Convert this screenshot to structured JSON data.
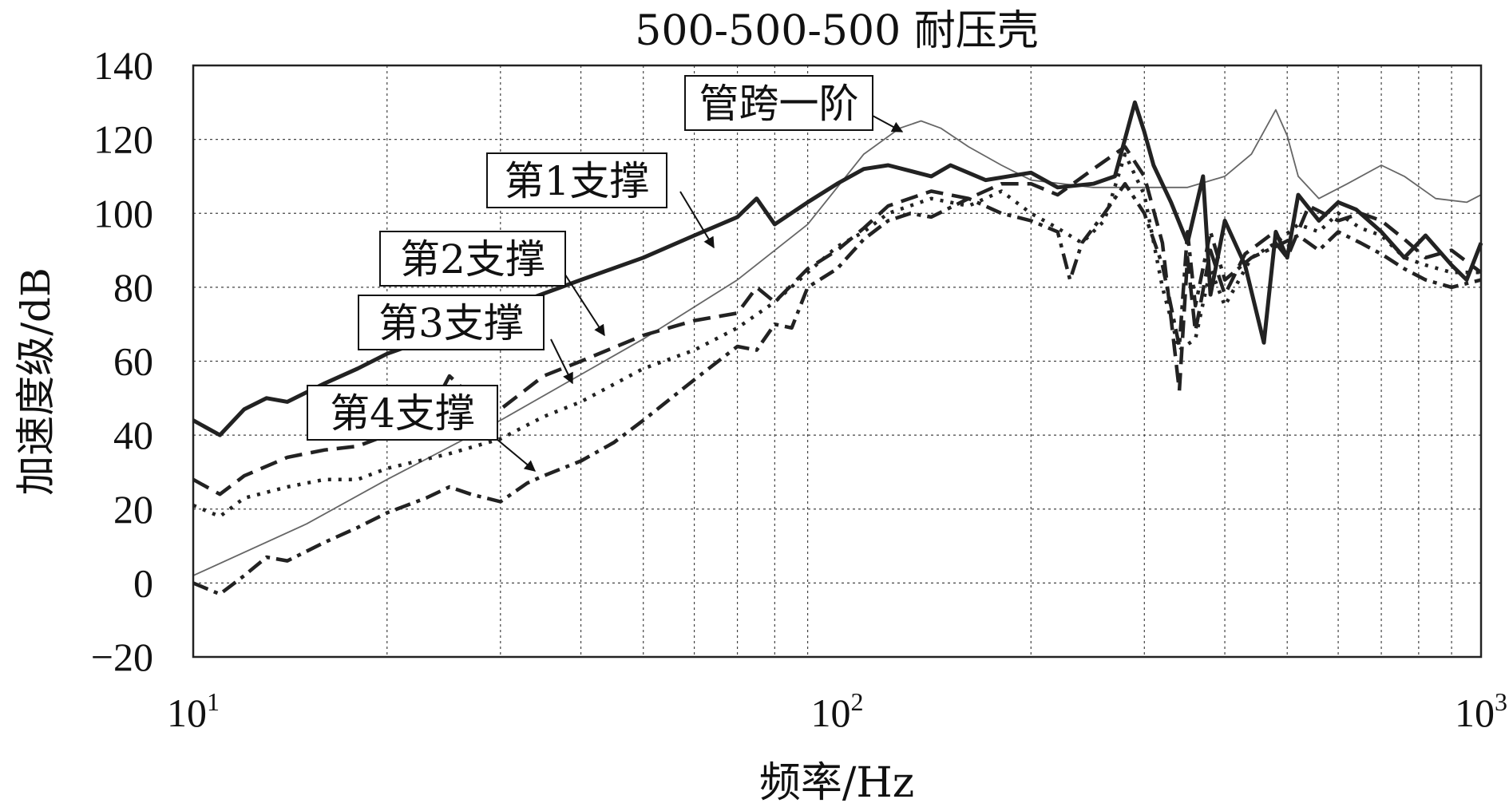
{
  "chart_data": {
    "type": "line",
    "title": "500-500-500 耐压壳",
    "xlabel": "频率/Hz",
    "ylabel": "加速度级/dB",
    "x_scale": "log",
    "xlim": [
      10,
      1000
    ],
    "ylim": [
      -20,
      140
    ],
    "grid": true,
    "y_ticks": [
      "−20",
      "0",
      "20",
      "40",
      "60",
      "80",
      "100",
      "120",
      "140"
    ],
    "x_ticks": [
      {
        "base": "10",
        "exp": "1"
      },
      {
        "base": "10",
        "exp": "2"
      },
      {
        "base": "10",
        "exp": "3"
      }
    ],
    "annotations": [
      "管跨一阶",
      "第1支撑",
      "第2支撑",
      "第3支撑",
      "第4支撑"
    ],
    "series": [
      {
        "name": "管跨一阶",
        "style": "thin",
        "color": "#666666",
        "x": [
          10,
          15,
          20,
          30,
          50,
          70,
          90,
          110,
          125,
          135,
          145,
          160,
          180,
          200,
          250,
          300,
          350,
          400,
          440,
          480,
          500,
          520,
          560,
          620,
          700,
          760,
          850,
          950,
          1000
        ],
        "y": [
          2,
          16,
          28,
          44,
          66,
          82,
          97,
          116,
          123,
          125,
          123,
          118,
          113,
          109,
          107,
          107,
          107,
          110,
          116,
          128,
          121,
          110,
          104,
          108,
          113,
          110,
          104,
          103,
          105
        ]
      },
      {
        "name": "第1支撑",
        "style": "thick",
        "color": "#222222",
        "x": [
          10,
          11,
          12,
          13,
          14,
          16,
          18,
          20,
          25,
          30,
          40,
          50,
          60,
          70,
          75,
          80,
          90,
          100,
          110,
          120,
          140,
          150,
          170,
          200,
          220,
          250,
          270,
          290,
          300,
          310,
          330,
          350,
          370,
          380,
          400,
          430,
          460,
          480,
          500,
          520,
          560,
          600,
          640,
          700,
          760,
          820,
          900,
          950,
          1000
        ],
        "y": [
          44,
          40,
          47,
          50,
          49,
          54,
          58,
          62,
          68,
          74,
          82,
          88,
          94,
          99,
          104,
          97,
          103,
          108,
          112,
          113,
          110,
          113,
          109,
          111,
          107,
          108,
          110,
          130,
          122,
          113,
          103,
          92,
          110,
          78,
          98,
          86,
          65,
          95,
          88,
          105,
          98,
          103,
          101,
          95,
          88,
          94,
          86,
          82,
          92
        ]
      },
      {
        "name": "第2支撑",
        "style": "dashed",
        "color": "#222222",
        "x": [
          10,
          11,
          12,
          14,
          16,
          18,
          20,
          23,
          25,
          28,
          30,
          35,
          40,
          50,
          60,
          70,
          75,
          80,
          90,
          100,
          110,
          120,
          140,
          160,
          180,
          200,
          220,
          250,
          280,
          300,
          320,
          340,
          350,
          360,
          380,
          400,
          430,
          470,
          500,
          540,
          600,
          650,
          700,
          760,
          820,
          900,
          1000
        ],
        "y": [
          28,
          24,
          29,
          34,
          36,
          37,
          40,
          44,
          56,
          48,
          47,
          56,
          60,
          67,
          71,
          73,
          80,
          76,
          85,
          90,
          96,
          102,
          106,
          104,
          108,
          108,
          105,
          112,
          118,
          110,
          92,
          52,
          88,
          68,
          90,
          78,
          89,
          94,
          88,
          102,
          98,
          100,
          98,
          93,
          88,
          90,
          84
        ]
      },
      {
        "name": "第3支撑",
        "style": "dotted",
        "color": "#222222",
        "x": [
          10,
          11,
          12,
          14,
          16,
          18,
          20,
          25,
          30,
          35,
          40,
          50,
          60,
          70,
          80,
          90,
          100,
          110,
          120,
          140,
          160,
          180,
          200,
          220,
          240,
          260,
          280,
          300,
          320,
          340,
          360,
          380,
          400,
          440,
          480,
          520,
          560,
          600,
          650,
          700,
          760,
          820,
          900,
          1000
        ],
        "y": [
          21,
          18,
          23,
          26,
          28,
          28,
          31,
          35,
          39,
          45,
          49,
          58,
          63,
          69,
          76,
          84,
          91,
          95,
          100,
          104,
          102,
          106,
          100,
          96,
          92,
          98,
          116,
          105,
          80,
          63,
          66,
          85,
          75,
          88,
          92,
          97,
          95,
          100,
          96,
          94,
          88,
          86,
          84,
          84
        ]
      },
      {
        "name": "第4支撑",
        "style": "dashdot",
        "color": "#222222",
        "x": [
          10,
          11,
          12,
          13,
          14,
          16,
          18,
          20,
          23,
          25,
          27,
          30,
          33,
          35,
          40,
          45,
          50,
          60,
          70,
          75,
          80,
          85,
          90,
          100,
          110,
          120,
          130,
          140,
          160,
          180,
          200,
          220,
          230,
          240,
          260,
          280,
          300,
          320,
          340,
          350,
          360,
          380,
          400,
          440,
          480,
          520,
          560,
          600,
          650,
          700,
          760,
          820,
          900,
          1000
        ],
        "y": [
          0,
          -3,
          2,
          7,
          6,
          11,
          15,
          19,
          23,
          26,
          24,
          22,
          27,
          29,
          33,
          38,
          44,
          55,
          64,
          63,
          70,
          69,
          80,
          85,
          93,
          98,
          100,
          99,
          104,
          100,
          98,
          95,
          82,
          92,
          100,
          108,
          100,
          86,
          64,
          95,
          75,
          95,
          82,
          88,
          91,
          94,
          90,
          95,
          92,
          89,
          85,
          82,
          80,
          82
        ]
      }
    ]
  }
}
